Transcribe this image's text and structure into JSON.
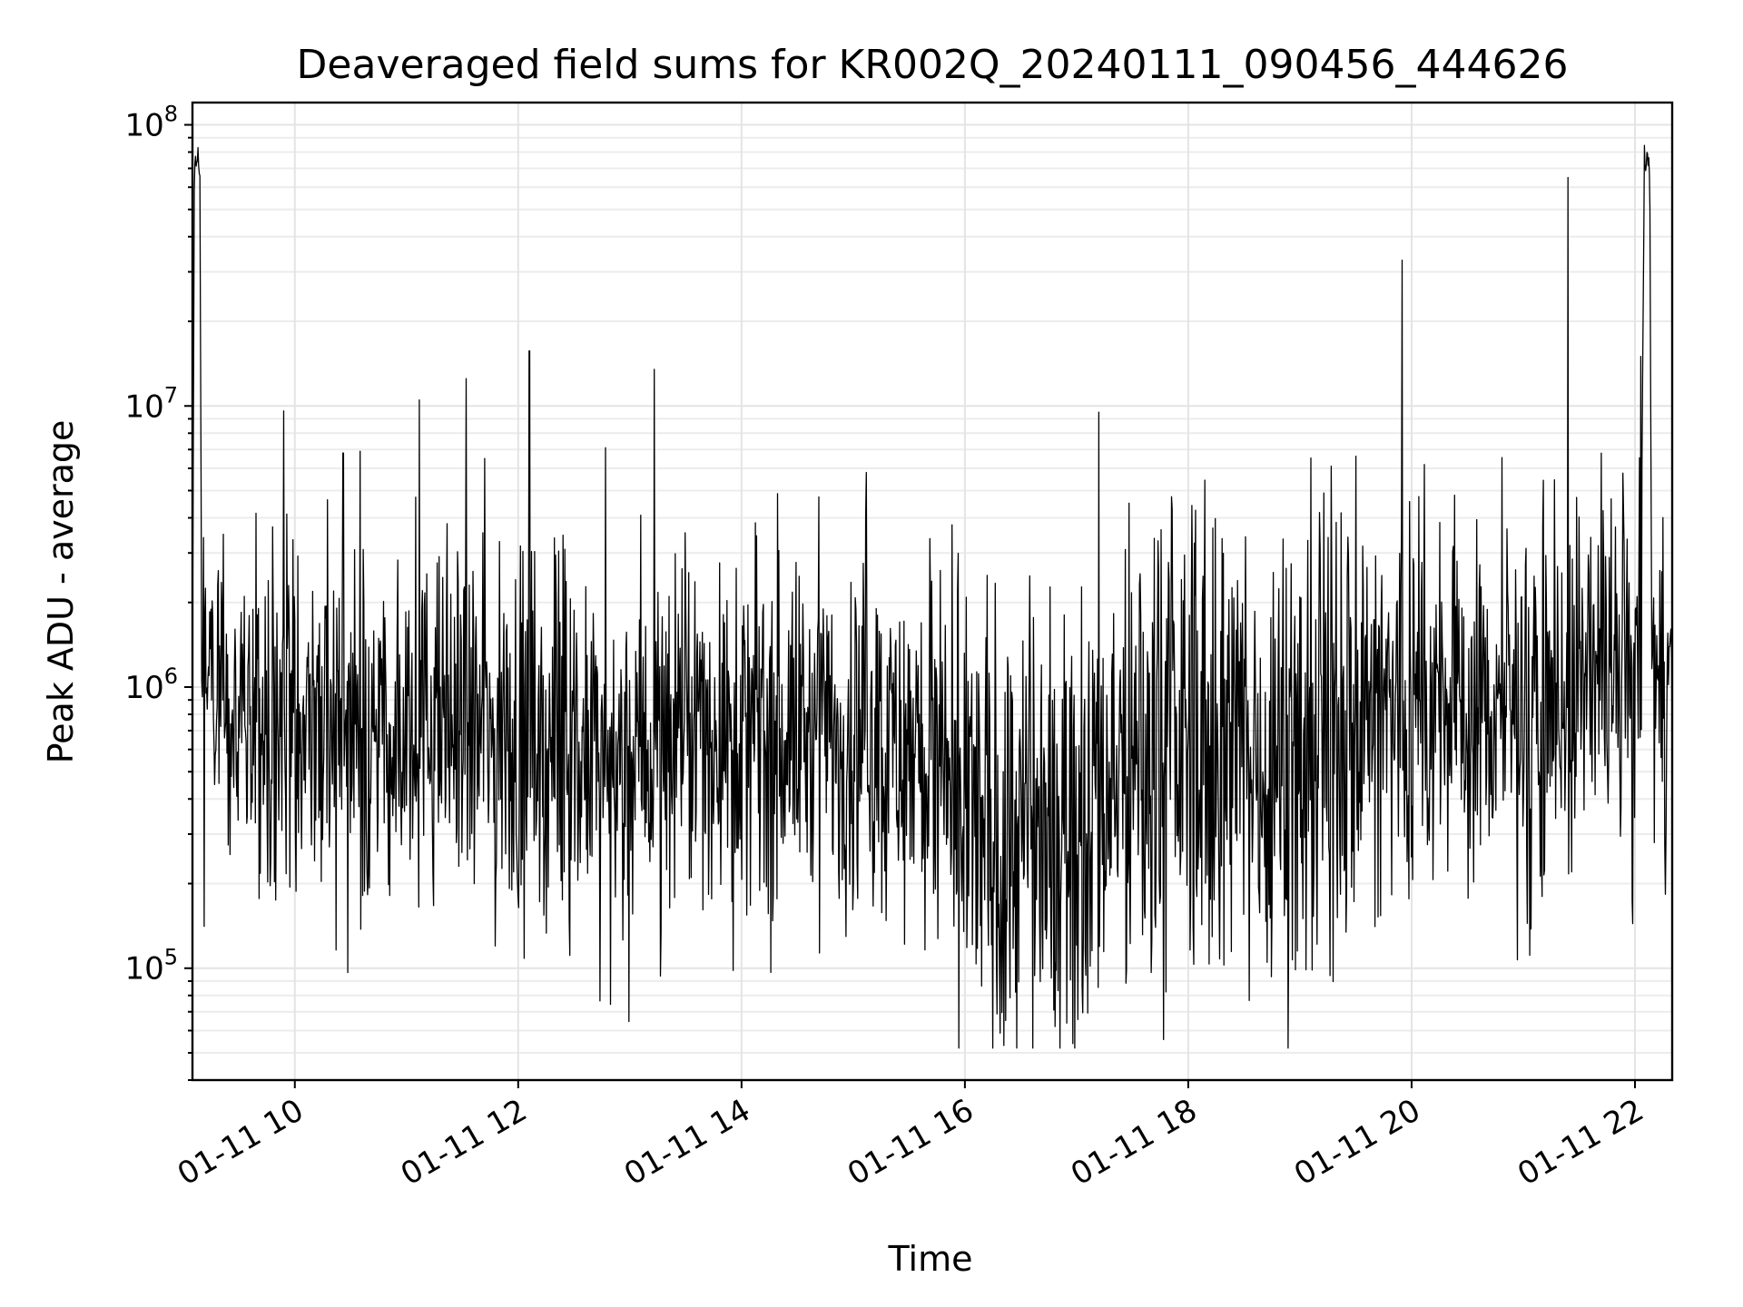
{
  "chart_data": {
    "type": "line",
    "title": "Deaveraged field sums for KR002Q_20240111_090456_444626",
    "xlabel": "Time",
    "ylabel": "Peak ADU - average",
    "y_scale": "log",
    "ylim": [
      40000,
      120000000
    ],
    "xlim": [
      "2024-01-11 09:05",
      "2024-01-11 22:20"
    ],
    "grid": true,
    "line_color": "#000000",
    "x_ticks": [
      {
        "value": "2024-01-11 10:00",
        "label": "01-11 10"
      },
      {
        "value": "2024-01-11 12:00",
        "label": "01-11 12"
      },
      {
        "value": "2024-01-11 14:00",
        "label": "01-11 14"
      },
      {
        "value": "2024-01-11 16:00",
        "label": "01-11 16"
      },
      {
        "value": "2024-01-11 18:00",
        "label": "01-11 18"
      },
      {
        "value": "2024-01-11 20:00",
        "label": "01-11 20"
      },
      {
        "value": "2024-01-11 22:00",
        "label": "01-11 22"
      }
    ],
    "y_ticks": [
      {
        "value": 100000,
        "base": "10",
        "exp": "5"
      },
      {
        "value": 1000000,
        "base": "10",
        "exp": "6"
      },
      {
        "value": 10000000,
        "base": "10",
        "exp": "7"
      },
      {
        "value": 100000000,
        "base": "10",
        "exp": "8"
      }
    ],
    "series": [
      {
        "x": [
          "2024-01-11 09:05",
          "2024-01-11 09:06",
          "2024-01-11 09:07",
          "2024-01-11 09:08",
          "2024-01-11 09:09",
          "2024-01-11 09:10",
          "2024-01-11 09:11",
          "2024-01-11 09:13",
          "2024-01-11 09:16",
          "2024-01-11 09:20",
          "2024-01-11 09:25",
          "2024-01-11 09:30",
          "2024-01-11 09:35",
          "2024-01-11 09:40",
          "2024-01-11 09:45",
          "2024-01-11 09:50",
          "2024-01-11 09:55",
          "2024-01-11 10:00",
          "2024-01-11 10:10",
          "2024-01-11 10:15",
          "2024-01-11 10:30",
          "2024-01-11 10:45",
          "2024-01-11 11:00",
          "2024-01-11 11:05",
          "2024-01-11 11:15",
          "2024-01-11 11:30",
          "2024-01-11 11:45",
          "2024-01-11 12:00",
          "2024-01-11 12:05",
          "2024-01-11 12:15",
          "2024-01-11 12:30",
          "2024-01-11 12:45",
          "2024-01-11 13:00",
          "2024-01-11 13:15",
          "2024-01-11 13:30",
          "2024-01-11 13:45",
          "2024-01-11 14:00",
          "2024-01-11 14:15",
          "2024-01-11 14:30",
          "2024-01-11 14:45",
          "2024-01-11 15:00",
          "2024-01-11 15:10",
          "2024-01-11 15:25",
          "2024-01-11 15:40",
          "2024-01-11 15:45",
          "2024-01-11 15:50",
          "2024-01-11 16:00",
          "2024-01-11 16:15",
          "2024-01-11 16:30",
          "2024-01-11 16:45",
          "2024-01-11 17:00",
          "2024-01-11 17:10",
          "2024-01-11 17:30",
          "2024-01-11 17:45",
          "2024-01-11 18:00",
          "2024-01-11 18:15",
          "2024-01-11 18:30",
          "2024-01-11 18:45",
          "2024-01-11 19:00",
          "2024-01-11 19:15",
          "2024-01-11 19:30",
          "2024-01-11 19:45",
          "2024-01-11 19:55",
          "2024-01-11 20:00",
          "2024-01-11 20:15",
          "2024-01-11 20:30",
          "2024-01-11 20:45",
          "2024-01-11 21:00",
          "2024-01-11 21:15",
          "2024-01-11 21:25",
          "2024-01-11 21:35",
          "2024-01-11 21:45",
          "2024-01-11 21:55",
          "2024-01-11 22:00",
          "2024-01-11 22:03",
          "2024-01-11 22:05",
          "2024-01-11 22:06",
          "2024-01-11 22:07",
          "2024-01-11 22:08",
          "2024-01-11 22:09",
          "2024-01-11 22:10",
          "2024-01-11 22:15",
          "2024-01-11 22:20"
        ],
        "y": [
          1400000,
          70000000,
          78000000,
          80000000,
          75000000,
          1200000,
          800000,
          1100000,
          900000,
          650000,
          700000,
          600000,
          620000,
          650000,
          700000,
          680000,
          700000,
          720000,
          750000,
          700000,
          650000,
          680000,
          700000,
          720000,
          750000,
          700000,
          650000,
          620000,
          600000,
          580000,
          550000,
          520000,
          500000,
          650000,
          700000,
          720000,
          680000,
          650000,
          700000,
          680000,
          650000,
          640000,
          600000,
          580000,
          500000,
          320000,
          330000,
          300000,
          280000,
          330000,
          340000,
          420000,
          500000,
          600000,
          620000,
          600000,
          580000,
          550000,
          650000,
          700000,
          750000,
          780000,
          800000,
          850000,
          820000,
          800000,
          820000,
          850000,
          900000,
          1000000,
          1100000,
          1000000,
          900000,
          950000,
          1300000,
          82000000,
          78000000,
          76000000,
          70000000,
          1100000,
          900000,
          950000,
          1000000
        ]
      }
    ],
    "spikes": [
      {
        "x": "2024-01-11 09:54",
        "y": 9600000
      },
      {
        "x": "2024-01-11 10:26",
        "y": 6800000
      },
      {
        "x": "2024-01-11 10:35",
        "y": 6900000
      },
      {
        "x": "2024-01-11 11:07",
        "y": 10500000
      },
      {
        "x": "2024-01-11 11:32",
        "y": 12500000
      },
      {
        "x": "2024-01-11 11:42",
        "y": 6500000
      },
      {
        "x": "2024-01-11 12:06",
        "y": 15700000
      },
      {
        "x": "2024-01-11 12:47",
        "y": 7100000
      },
      {
        "x": "2024-01-11 13:13",
        "y": 13500000
      },
      {
        "x": "2024-01-11 15:07",
        "y": 5800000
      },
      {
        "x": "2024-01-11 17:12",
        "y": 9500000
      },
      {
        "x": "2024-01-11 19:55",
        "y": 33000000
      },
      {
        "x": "2024-01-11 21:24",
        "y": 65000000
      },
      {
        "x": "2024-01-11 22:03",
        "y": 15000000
      }
    ]
  }
}
